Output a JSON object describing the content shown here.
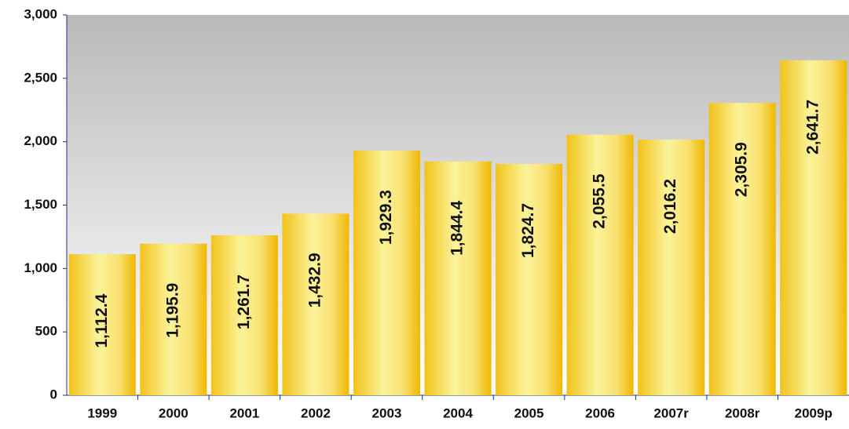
{
  "chart_data": {
    "type": "bar",
    "categories": [
      "1999",
      "2000",
      "2001",
      "2002",
      "2003",
      "2004",
      "2005",
      "2006",
      "2007r",
      "2008r",
      "2009p"
    ],
    "values": [
      1112.4,
      1195.9,
      1261.7,
      1432.9,
      1929.3,
      1844.4,
      1824.7,
      2055.5,
      2016.2,
      2305.9,
      2641.7
    ],
    "value_labels": [
      "1,112.4",
      "1,195.9",
      "1,261.7",
      "1,432.9",
      "1,929.3",
      "1,844.4",
      "1,824.7",
      "2,055.5",
      "2,016.2",
      "2,305.9",
      "2,641.7"
    ],
    "color": "#f5c518",
    "ylim": [
      0,
      3000
    ],
    "yticks": [
      0,
      500,
      {
        "value": 1000,
        "label": "1,000"
      },
      {
        "value": 1500,
        "label": "1,500"
      },
      {
        "value": 2000,
        "label": "2,000"
      },
      {
        "value": 2500,
        "label": "2,500"
      },
      {
        "value": 3000,
        "label": "3,000"
      }
    ],
    "grid": false
  }
}
